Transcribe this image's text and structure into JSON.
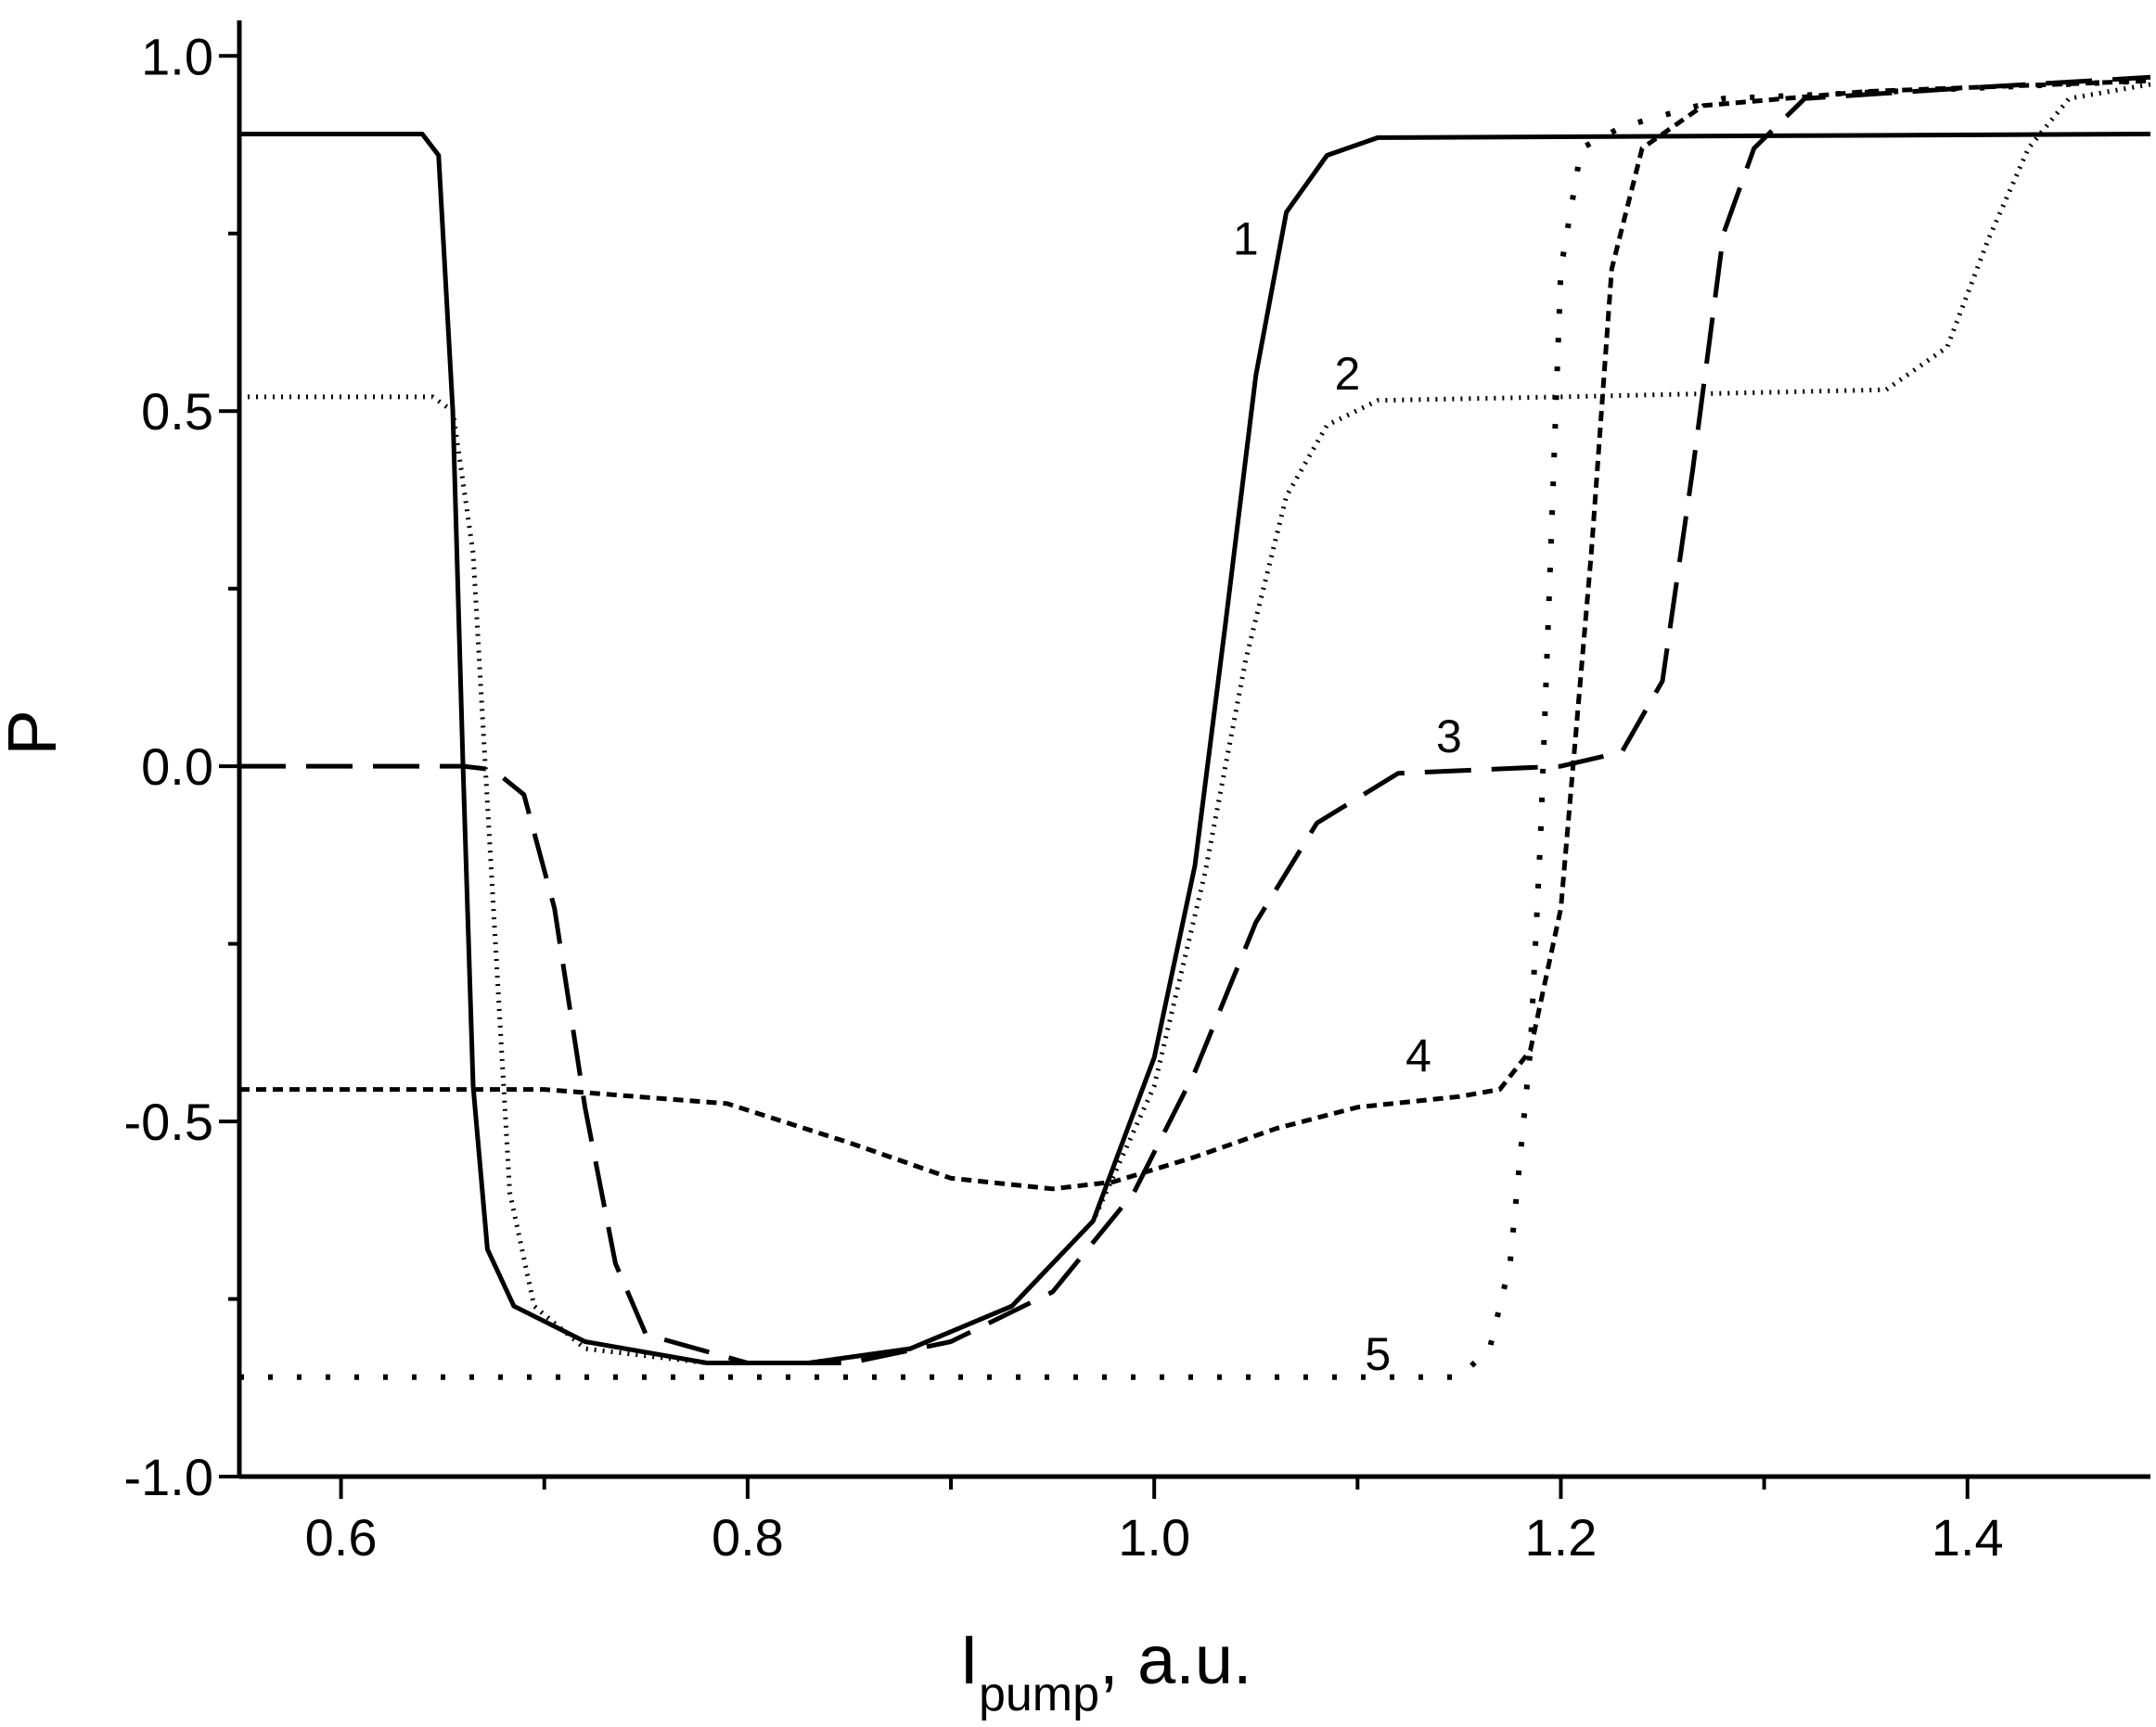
{
  "chart_data": {
    "type": "line",
    "xlabel_main": "I",
    "xlabel_sub": "pump",
    "xlabel_rest": ", a.u.",
    "ylabel": "P",
    "xlim": [
      0.55,
      1.49
    ],
    "ylim": [
      -1.0,
      1.05
    ],
    "x_ticks": [
      0.6,
      0.8,
      1.0,
      1.2,
      1.4
    ],
    "x_tick_labels": [
      "0.6",
      "0.8",
      "1.0",
      "1.2",
      "1.4"
    ],
    "x_minor_ticks": [
      0.7,
      0.9,
      1.1,
      1.3
    ],
    "y_ticks": [
      -1.0,
      -0.5,
      0.0,
      0.5,
      1.0
    ],
    "y_tick_labels": [
      "-1.0",
      "-0.5",
      "0.0",
      "0.5",
      "1.0"
    ],
    "y_minor_ticks": [
      -0.75,
      -0.25,
      0.25,
      0.75
    ],
    "grid": false,
    "series": [
      {
        "label": "1",
        "style": "solid",
        "label_pos": [
          1.045,
          0.72
        ],
        "points": [
          [
            0.55,
            0.89
          ],
          [
            0.64,
            0.89
          ],
          [
            0.648,
            0.86
          ],
          [
            0.655,
            0.5
          ],
          [
            0.66,
            0.0
          ],
          [
            0.665,
            -0.45
          ],
          [
            0.672,
            -0.68
          ],
          [
            0.685,
            -0.76
          ],
          [
            0.72,
            -0.81
          ],
          [
            0.78,
            -0.84
          ],
          [
            0.83,
            -0.84
          ],
          [
            0.88,
            -0.82
          ],
          [
            0.93,
            -0.76
          ],
          [
            0.97,
            -0.64
          ],
          [
            1.0,
            -0.41
          ],
          [
            1.02,
            -0.14
          ],
          [
            1.035,
            0.2
          ],
          [
            1.05,
            0.55
          ],
          [
            1.065,
            0.78
          ],
          [
            1.085,
            0.86
          ],
          [
            1.11,
            0.885
          ],
          [
            1.49,
            0.89
          ]
        ]
      },
      {
        "label": "2",
        "style": "dotted",
        "label_pos": [
          1.095,
          0.53
        ],
        "points": [
          [
            0.55,
            0.52
          ],
          [
            0.645,
            0.52
          ],
          [
            0.655,
            0.5
          ],
          [
            0.665,
            0.3
          ],
          [
            0.675,
            -0.2
          ],
          [
            0.683,
            -0.6
          ],
          [
            0.695,
            -0.76
          ],
          [
            0.72,
            -0.82
          ],
          [
            0.78,
            -0.84
          ],
          [
            0.83,
            -0.84
          ],
          [
            0.88,
            -0.82
          ],
          [
            0.93,
            -0.76
          ],
          [
            0.97,
            -0.64
          ],
          [
            1.0,
            -0.45
          ],
          [
            1.025,
            -0.15
          ],
          [
            1.045,
            0.15
          ],
          [
            1.065,
            0.38
          ],
          [
            1.085,
            0.48
          ],
          [
            1.11,
            0.515
          ],
          [
            1.2,
            0.52
          ],
          [
            1.36,
            0.53
          ],
          [
            1.39,
            0.59
          ],
          [
            1.41,
            0.74
          ],
          [
            1.43,
            0.87
          ],
          [
            1.45,
            0.94
          ],
          [
            1.49,
            0.96
          ]
        ]
      },
      {
        "label": "3",
        "style": "dashed",
        "label_pos": [
          1.145,
          0.02
        ],
        "points": [
          [
            0.55,
            0.0
          ],
          [
            0.66,
            0.0
          ],
          [
            0.675,
            -0.005
          ],
          [
            0.69,
            -0.04
          ],
          [
            0.705,
            -0.2
          ],
          [
            0.72,
            -0.48
          ],
          [
            0.735,
            -0.7
          ],
          [
            0.75,
            -0.8
          ],
          [
            0.8,
            -0.84
          ],
          [
            0.85,
            -0.84
          ],
          [
            0.9,
            -0.81
          ],
          [
            0.95,
            -0.74
          ],
          [
            0.99,
            -0.6
          ],
          [
            1.02,
            -0.43
          ],
          [
            1.05,
            -0.22
          ],
          [
            1.08,
            -0.08
          ],
          [
            1.12,
            -0.01
          ],
          [
            1.2,
            0.0
          ],
          [
            1.23,
            0.02
          ],
          [
            1.25,
            0.12
          ],
          [
            1.265,
            0.42
          ],
          [
            1.28,
            0.75
          ],
          [
            1.295,
            0.87
          ],
          [
            1.32,
            0.94
          ],
          [
            1.4,
            0.955
          ],
          [
            1.49,
            0.97
          ]
        ]
      },
      {
        "label": "4",
        "style": "short-dashed",
        "label_pos": [
          1.13,
          -0.43
        ],
        "points": [
          [
            0.55,
            -0.455
          ],
          [
            0.7,
            -0.455
          ],
          [
            0.79,
            -0.475
          ],
          [
            0.85,
            -0.53
          ],
          [
            0.9,
            -0.58
          ],
          [
            0.95,
            -0.595
          ],
          [
            0.98,
            -0.585
          ],
          [
            1.02,
            -0.55
          ],
          [
            1.06,
            -0.51
          ],
          [
            1.1,
            -0.48
          ],
          [
            1.15,
            -0.465
          ],
          [
            1.17,
            -0.455
          ],
          [
            1.185,
            -0.4
          ],
          [
            1.2,
            -0.2
          ],
          [
            1.215,
            0.3
          ],
          [
            1.225,
            0.7
          ],
          [
            1.24,
            0.87
          ],
          [
            1.27,
            0.93
          ],
          [
            1.35,
            0.95
          ],
          [
            1.49,
            0.965
          ]
        ]
      },
      {
        "label": "5",
        "style": "sparse-dotted",
        "label_pos": [
          1.11,
          -0.85
        ],
        "points": [
          [
            0.55,
            -0.86
          ],
          [
            1.15,
            -0.86
          ],
          [
            1.165,
            -0.82
          ],
          [
            1.175,
            -0.7
          ],
          [
            1.185,
            -0.4
          ],
          [
            1.19,
            -0.1
          ],
          [
            1.195,
            0.3
          ],
          [
            1.2,
            0.7
          ],
          [
            1.21,
            0.87
          ],
          [
            1.23,
            0.9
          ],
          [
            1.28,
            0.94
          ],
          [
            1.49,
            0.965
          ]
        ]
      }
    ]
  }
}
